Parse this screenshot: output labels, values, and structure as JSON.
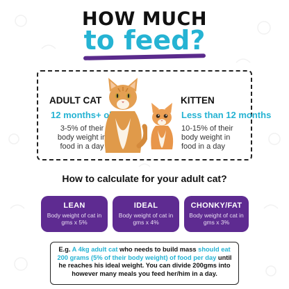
{
  "title": {
    "line1": "HOW MUCH",
    "line2": "to feed?"
  },
  "adult": {
    "heading": "ADULT CAT",
    "age": "12 months+ old",
    "desc_line1": "3-5% of their",
    "desc_line2": "body weight in",
    "desc_line3": "food in a day"
  },
  "kitten": {
    "heading": "KITTEN",
    "age": "Less than 12 months",
    "desc_line1": "10-15% of their",
    "desc_line2": "body weight in",
    "desc_line3": "food in a day"
  },
  "calc_heading": "How to calculate for your adult cat?",
  "cards": {
    "lean": {
      "title": "LEAN",
      "desc": "Body weight of cat in gms x 5%"
    },
    "ideal": {
      "title": "IDEAL",
      "desc": "Body weight of cat in gms x 4%"
    },
    "chonky": {
      "title": "CHONKY/FAT",
      "desc": "Body weight of cat in gms x 3%"
    }
  },
  "example": {
    "prefix": "E.g. ",
    "hl1": "A 4kg adult cat",
    "mid1": " who needs to build mass ",
    "hl2": "should eat 200 grams (5% of their body weight) of food per day",
    "rest": " until he reaches his ideal weight. You can divide 200gms into however many meals you feed her/him in a day."
  },
  "colors": {
    "accent": "#25b3d3",
    "purple": "#5e2b91"
  }
}
